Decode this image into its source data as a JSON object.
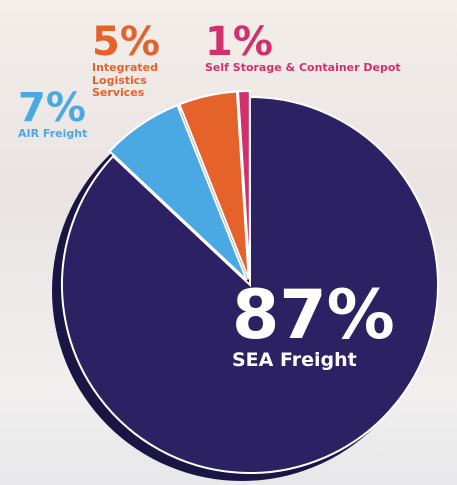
{
  "chart_data": {
    "type": "pie",
    "categories": [
      "SEA Freight",
      "AIR Freight",
      "Integrated Logistics Services",
      "Self Storage & Container Depot"
    ],
    "values": [
      87,
      7,
      5,
      1
    ],
    "value_labels": [
      "87%",
      "7%",
      "5%",
      "1%"
    ],
    "colors": [
      "#2b2163",
      "#4aa9e3",
      "#e5622b",
      "#d2306c"
    ]
  }
}
